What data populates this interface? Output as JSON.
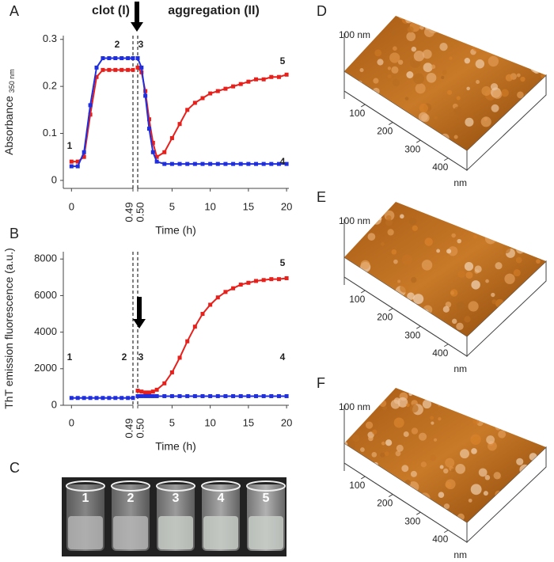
{
  "chart_data": [
    {
      "type": "line",
      "panel": "A",
      "phase_labels": [
        "clot (I)",
        "aggregation (II)"
      ],
      "y_label": "Absorbance",
      "y_label_sub": "350 nm",
      "x_label": "Time (h)",
      "x_segments": [
        {
          "xlim": [
            -0.065,
            0.49
          ]
        },
        {
          "xlim": [
            0.5,
            20.3
          ]
        }
      ],
      "x": [
        0,
        0.05,
        0.1,
        0.15,
        0.2,
        0.25,
        0.3,
        0.35,
        0.4,
        0.45,
        0.49,
        0.5,
        1,
        1.5,
        2,
        2.5,
        3,
        4,
        5,
        6,
        7,
        8,
        9,
        10,
        11,
        12,
        13,
        14,
        15,
        16,
        17,
        18,
        19,
        20
      ],
      "series": [
        {
          "color": "#e8201c",
          "values": [
            0.04,
            0.04,
            0.05,
            0.14,
            0.22,
            0.235,
            0.235,
            0.235,
            0.235,
            0.235,
            0.235,
            0.24,
            0.23,
            0.19,
            0.13,
            0.08,
            0.05,
            0.06,
            0.09,
            0.12,
            0.15,
            0.165,
            0.175,
            0.185,
            0.19,
            0.195,
            0.2,
            0.205,
            0.21,
            0.215,
            0.215,
            0.22,
            0.22,
            0.225
          ]
        },
        {
          "color": "#1f2fe0",
          "values": [
            0.03,
            0.03,
            0.06,
            0.16,
            0.24,
            0.26,
            0.26,
            0.26,
            0.26,
            0.26,
            0.26,
            0.26,
            0.24,
            0.18,
            0.11,
            0.06,
            0.04,
            0.035,
            0.035,
            0.035,
            0.035,
            0.035,
            0.035,
            0.035,
            0.035,
            0.035,
            0.035,
            0.035,
            0.035,
            0.035,
            0.035,
            0.035,
            0.035,
            0.035
          ]
        }
      ],
      "ylim": [
        -0.017,
        0.308
      ],
      "yticks": [
        0,
        0.1,
        0.2,
        0.3
      ],
      "xticks": [
        0,
        0.49,
        {
          "value": 0.5,
          "label": "0.50"
        },
        5,
        10,
        15,
        20
      ],
      "annotations": [
        "1",
        "2",
        "3",
        "4",
        "5"
      ]
    },
    {
      "type": "line",
      "panel": "B",
      "y_label": "ThT emission fluorescence (a.u.)",
      "x_label": "Time (h)",
      "x_segments": [
        {
          "xlim": [
            -0.065,
            0.49
          ]
        },
        {
          "xlim": [
            0.5,
            20.3
          ]
        }
      ],
      "x": [
        0,
        0.05,
        0.1,
        0.15,
        0.2,
        0.25,
        0.3,
        0.35,
        0.4,
        0.45,
        0.49,
        0.5,
        1,
        1.5,
        2,
        2.5,
        3,
        4,
        5,
        6,
        7,
        8,
        9,
        10,
        11,
        12,
        13,
        14,
        15,
        16,
        17,
        18,
        19,
        20
      ],
      "series": [
        {
          "color": "#e8201c",
          "values": [
            null,
            null,
            null,
            null,
            null,
            null,
            null,
            null,
            null,
            null,
            null,
            800,
            750,
            700,
            700,
            750,
            850,
            1200,
            1800,
            2600,
            3500,
            4300,
            5000,
            5500,
            5900,
            6200,
            6400,
            6600,
            6700,
            6800,
            6850,
            6900,
            6900,
            6950
          ]
        },
        {
          "color": "#1f2fe0",
          "values": [
            400,
            400,
            400,
            400,
            400,
            400,
            400,
            400,
            400,
            400,
            400,
            500,
            500,
            500,
            500,
            500,
            500,
            500,
            500,
            500,
            500,
            500,
            500,
            500,
            500,
            500,
            500,
            500,
            500,
            500,
            500,
            500,
            500,
            500
          ]
        }
      ],
      "ylim": [
        0,
        8400
      ],
      "yticks": [
        0,
        2000,
        4000,
        6000,
        8000
      ],
      "xticks": [
        0,
        0.49,
        {
          "value": 0.5,
          "label": "0.50"
        },
        5,
        10,
        15,
        20
      ],
      "annotations": [
        "1",
        "2",
        "3",
        "4",
        "5"
      ]
    }
  ],
  "photo": {
    "panel": "C",
    "vial_labels": [
      "1",
      "2",
      "3",
      "4",
      "5"
    ]
  },
  "afm_panels": [
    {
      "panel": "D",
      "z_label": "100 nm",
      "ticks": [
        100,
        200,
        300,
        400
      ],
      "unit": "nm"
    },
    {
      "panel": "E",
      "z_label": "100 nm",
      "ticks": [
        100,
        200,
        300,
        400
      ],
      "unit": "nm"
    },
    {
      "panel": "F",
      "z_label": "100 nm",
      "ticks": [
        100,
        200,
        300,
        400
      ],
      "unit": "nm"
    }
  ]
}
